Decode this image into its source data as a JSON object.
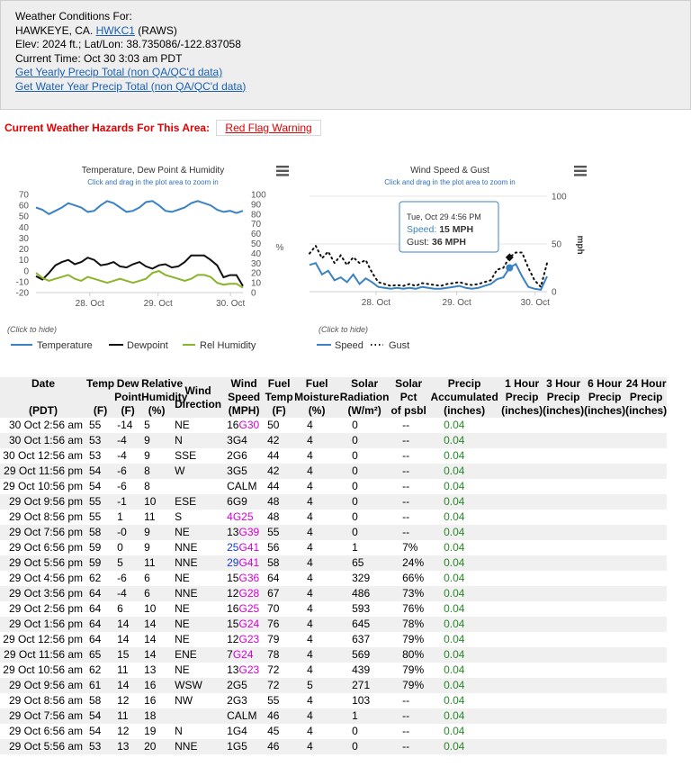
{
  "station": {
    "header": "Weather Conditions For:",
    "name_prefix": "HAWKEYE, CA.",
    "station_id": "HWKC1",
    "network": "(RAWS)",
    "elevation_line": "Elev: 2024 ft.; Lat/Lon: 38.735086/-122.837058",
    "current_time_line": "Current Time: Oct 30 3:03 am PDT",
    "yearly_link": "Get Yearly Precip Total (non QA/QC'd data)",
    "water_year_link": "Get Water Year Precip Total (non QA/QC'd data)"
  },
  "hazards": {
    "label": "Current Weather Hazards For This Area:",
    "warning": "Red Flag Warning",
    "color": "#e30000"
  },
  "temp_chart": {
    "title": "Temperature, Dew Point & Humidity",
    "subtitle": "Click and drag in the plot area to zoom in",
    "left_ticks": [
      "70",
      "60",
      "50",
      "40",
      "30",
      "20",
      "10",
      "0",
      "-10",
      "-20"
    ],
    "right_ticks": [
      "100",
      "90",
      "80",
      "70",
      "60",
      "50",
      "40",
      "30",
      "20",
      "10",
      "0"
    ],
    "right_axis_label": "%",
    "x_ticks": [
      "28. Oct",
      "29. Oct",
      "30. Oct"
    ],
    "click_to_hide": "(Click to hide)",
    "legend": [
      {
        "label": "Temperature",
        "color": "#3b82c4"
      },
      {
        "label": "Dewpoint",
        "color": "#111111"
      },
      {
        "label": "Rel Humidity",
        "color": "#8ab42a"
      }
    ],
    "menu_icon": "hamburger-icon"
  },
  "chart_data": [
    {
      "type": "line",
      "title": "Temperature, Dew Point & Humidity",
      "x_range": [
        "27 Oct 03:00",
        "30 Oct 03:00"
      ],
      "ylim_left": [
        -20,
        70
      ],
      "ylim_right": [
        0,
        100
      ],
      "series": [
        {
          "name": "Temperature",
          "axis": "left",
          "values": [
            58,
            56,
            52,
            55,
            58,
            62,
            60,
            58,
            54,
            55,
            60,
            64,
            62,
            58,
            54,
            55,
            58,
            63,
            64,
            60,
            55,
            54,
            56,
            58,
            62,
            64,
            62,
            60,
            56,
            54,
            55,
            53,
            55
          ]
        },
        {
          "name": "Dewpoint",
          "axis": "left",
          "values": [
            -5,
            -8,
            -2,
            5,
            8,
            10,
            6,
            8,
            12,
            10,
            5,
            6,
            8,
            4,
            3,
            6,
            8,
            4,
            2,
            5,
            6,
            3,
            4,
            8,
            14,
            14,
            14,
            10,
            5,
            -6,
            -4,
            -4,
            -14
          ]
        },
        {
          "name": "Rel Humidity",
          "axis": "right",
          "values": [
            20,
            15,
            12,
            14,
            16,
            18,
            14,
            12,
            16,
            14,
            12,
            10,
            12,
            14,
            12,
            10,
            12,
            14,
            20,
            22,
            18,
            16,
            14,
            12,
            14,
            18,
            18,
            16,
            10,
            8,
            9,
            9,
            5
          ]
        }
      ]
    },
    {
      "type": "line",
      "title": "Wind Speed & Gust",
      "x_range": [
        "27 Oct 03:00",
        "30 Oct 03:00"
      ],
      "ylim": [
        0,
        100
      ],
      "ylabel": "mph",
      "series": [
        {
          "name": "Speed",
          "values": [
            28,
            30,
            18,
            22,
            12,
            15,
            10,
            18,
            8,
            14,
            10,
            5,
            4,
            3,
            4,
            3,
            4,
            3,
            5,
            4,
            3,
            3,
            4,
            5,
            6,
            4,
            3,
            4,
            6,
            8,
            13,
            15,
            25,
            29,
            16,
            5,
            3,
            2,
            16
          ]
        },
        {
          "name": "Gust",
          "values": [
            40,
            48,
            35,
            42,
            30,
            38,
            28,
            36,
            30,
            33,
            20,
            10,
            8,
            6,
            7,
            6,
            8,
            6,
            9,
            8,
            7,
            6,
            8,
            9,
            10,
            8,
            7,
            8,
            10,
            12,
            23,
            25,
            36,
            41,
            41,
            25,
            12,
            5,
            30
          ]
        }
      ]
    }
  ],
  "wind_chart": {
    "title": "Wind Speed & Gust",
    "subtitle": "Click and drag in the plot area to zoom in",
    "right_ticks": [
      "100",
      "50",
      "0"
    ],
    "axis_label": "mph",
    "x_ticks": [
      "28. Oct",
      "29. Oct",
      "30. Oct"
    ],
    "tooltip": {
      "time": "Tue, Oct 29 4:56 PM",
      "speed_label": "Speed:",
      "speed_value": "15 MPH",
      "gust_label": "Gust:",
      "gust_value": "36 MPH"
    },
    "click_to_hide": "(Click to hide)",
    "legend": [
      {
        "label": "Speed",
        "color": "#3b82c4"
      },
      {
        "label": "Gust",
        "color": "#111111"
      }
    ],
    "menu_icon": "hamburger-icon"
  },
  "table": {
    "headers": {
      "date": "Date",
      "date_sub": "(PDT)",
      "temp": "Temp",
      "temp_sub": "(F)",
      "dew": "Dew Point",
      "dew_sub": "(F)",
      "rh": "Relative Humidity",
      "rh_sub": "(%)",
      "wind_dir": "Wind Direction",
      "wind_speed": "Wind Speed",
      "wind_speed_sub": "(MPH)",
      "fuel_temp": "Fuel Temp",
      "fuel_temp_sub": "(F)",
      "fuel_moist": "Fuel Moisture",
      "fuel_moist_sub": "(%)",
      "solar": "Solar Radiation",
      "solar_sub": "(W/m²)",
      "solar_pct": "Solar Pct",
      "solar_pct_sub": "of psbl",
      "precip": "Precip Accumulated",
      "precip_sub": "(inches)",
      "p1": "1 Hour Precip",
      "p3": "3 Hour Precip",
      "p6": "6 Hour Precip",
      "p24": "24 Hour Precip",
      "inches": "(inches)"
    },
    "rows": [
      {
        "date": "30 Oct 2:56 am",
        "temp": "55",
        "dew": "-14",
        "rh": "5",
        "dir": "NE",
        "spd": "16",
        "gust": "G30",
        "ftemp": "50",
        "fmoist": "4",
        "solar": "0",
        "pct": "--",
        "precip": "0.04"
      },
      {
        "date": "30 Oct 1:56 am",
        "temp": "53",
        "dew": "-4",
        "rh": "9",
        "dir": "N",
        "spd": "3",
        "gust": "G4",
        "ftemp": "42",
        "fmoist": "4",
        "solar": "0",
        "pct": "--",
        "precip": "0.04"
      },
      {
        "date": "30 Oct 12:56 am",
        "temp": "53",
        "dew": "-4",
        "rh": "9",
        "dir": "SSE",
        "spd": "2",
        "gust": "G6",
        "ftemp": "44",
        "fmoist": "4",
        "solar": "0",
        "pct": "--",
        "precip": "0.04"
      },
      {
        "date": "29 Oct 11:56 pm",
        "temp": "54",
        "dew": "-6",
        "rh": "8",
        "dir": "W",
        "spd": "3",
        "gust": "G5",
        "ftemp": "42",
        "fmoist": "4",
        "solar": "0",
        "pct": "--",
        "precip": "0.04"
      },
      {
        "date": "29 Oct 10:56 pm",
        "temp": "54",
        "dew": "-6",
        "rh": "8",
        "dir": "",
        "spd": "CALM",
        "gust": "",
        "ftemp": "44",
        "fmoist": "4",
        "solar": "0",
        "pct": "--",
        "precip": "0.04"
      },
      {
        "date": "29 Oct 9:56 pm",
        "temp": "55",
        "dew": "-1",
        "rh": "10",
        "dir": "ESE",
        "spd": "6",
        "gust": "G9",
        "ftemp": "48",
        "fmoist": "4",
        "solar": "0",
        "pct": "--",
        "precip": "0.04"
      },
      {
        "date": "29 Oct 8:56 pm",
        "temp": "55",
        "dew": "1",
        "rh": "11",
        "dir": "S",
        "spd": "4",
        "gust": "G25",
        "ftemp": "48",
        "fmoist": "4",
        "solar": "0",
        "pct": "--",
        "precip": "0.04"
      },
      {
        "date": "29 Oct 7:56 pm",
        "temp": "58",
        "dew": "-0",
        "rh": "9",
        "dir": "NE",
        "spd": "13",
        "gust": "G39",
        "ftemp": "55",
        "fmoist": "4",
        "solar": "0",
        "pct": "--",
        "precip": "0.04"
      },
      {
        "date": "29 Oct 6:56 pm",
        "temp": "59",
        "dew": "0",
        "rh": "9",
        "dir": "NNE",
        "spd": "25",
        "gust": "G41",
        "ftemp": "56",
        "fmoist": "4",
        "solar": "1",
        "pct": "7%",
        "precip": "0.04"
      },
      {
        "date": "29 Oct 5:56 pm",
        "temp": "59",
        "dew": "5",
        "rh": "11",
        "dir": "NNE",
        "spd": "29",
        "gust": "G41",
        "ftemp": "58",
        "fmoist": "4",
        "solar": "65",
        "pct": "24%",
        "precip": "0.04"
      },
      {
        "date": "29 Oct 4:56 pm",
        "temp": "62",
        "dew": "-6",
        "rh": "6",
        "dir": "NE",
        "spd": "15",
        "gust": "G36",
        "ftemp": "64",
        "fmoist": "4",
        "solar": "329",
        "pct": "66%",
        "precip": "0.04"
      },
      {
        "date": "29 Oct 3:56 pm",
        "temp": "64",
        "dew": "-4",
        "rh": "6",
        "dir": "NNE",
        "spd": "12",
        "gust": "G28",
        "ftemp": "67",
        "fmoist": "4",
        "solar": "486",
        "pct": "73%",
        "precip": "0.04"
      },
      {
        "date": "29 Oct 2:56 pm",
        "temp": "64",
        "dew": "6",
        "rh": "10",
        "dir": "NE",
        "spd": "16",
        "gust": "G25",
        "ftemp": "70",
        "fmoist": "4",
        "solar": "593",
        "pct": "76%",
        "precip": "0.04"
      },
      {
        "date": "29 Oct 1:56 pm",
        "temp": "64",
        "dew": "14",
        "rh": "14",
        "dir": "NE",
        "spd": "15",
        "gust": "G24",
        "ftemp": "76",
        "fmoist": "4",
        "solar": "645",
        "pct": "78%",
        "precip": "0.04"
      },
      {
        "date": "29 Oct 12:56 pm",
        "temp": "64",
        "dew": "14",
        "rh": "14",
        "dir": "NE",
        "spd": "12",
        "gust": "G23",
        "ftemp": "79",
        "fmoist": "4",
        "solar": "637",
        "pct": "79%",
        "precip": "0.04"
      },
      {
        "date": "29 Oct 11:56 am",
        "temp": "65",
        "dew": "15",
        "rh": "14",
        "dir": "ENE",
        "spd": "7",
        "gust": "G24",
        "ftemp": "78",
        "fmoist": "4",
        "solar": "569",
        "pct": "80%",
        "precip": "0.04"
      },
      {
        "date": "29 Oct 10:56 am",
        "temp": "62",
        "dew": "11",
        "rh": "13",
        "dir": "NE",
        "spd": "13",
        "gust": "G23",
        "ftemp": "72",
        "fmoist": "4",
        "solar": "439",
        "pct": "79%",
        "precip": "0.04"
      },
      {
        "date": "29 Oct 9:56 am",
        "temp": "61",
        "dew": "14",
        "rh": "16",
        "dir": "WSW",
        "spd": "2",
        "gust": "G5",
        "ftemp": "72",
        "fmoist": "5",
        "solar": "271",
        "pct": "79%",
        "precip": "0.04"
      },
      {
        "date": "29 Oct 8:56 am",
        "temp": "58",
        "dew": "12",
        "rh": "16",
        "dir": "NW",
        "spd": "2",
        "gust": "G3",
        "ftemp": "55",
        "fmoist": "4",
        "solar": "103",
        "pct": "--",
        "precip": "0.04"
      },
      {
        "date": "29 Oct 7:56 am",
        "temp": "54",
        "dew": "11",
        "rh": "18",
        "dir": "",
        "spd": "CALM",
        "gust": "",
        "ftemp": "46",
        "fmoist": "4",
        "solar": "1",
        "pct": "--",
        "precip": "0.04"
      },
      {
        "date": "29 Oct 6:56 am",
        "temp": "54",
        "dew": "12",
        "rh": "19",
        "dir": "N",
        "spd": "1",
        "gust": "G4",
        "ftemp": "45",
        "fmoist": "4",
        "solar": "0",
        "pct": "--",
        "precip": "0.04"
      },
      {
        "date": "29 Oct 5:56 am",
        "temp": "53",
        "dew": "13",
        "rh": "20",
        "dir": "NNE",
        "spd": "1",
        "gust": "G5",
        "ftemp": "46",
        "fmoist": "4",
        "solar": "0",
        "pct": "--",
        "precip": "0.04"
      }
    ]
  },
  "colors": {
    "temperature": "#3b82c4",
    "dewpoint": "#111111",
    "humidity": "#8ab42a",
    "speed": "#3b82c4",
    "gust": "#111111",
    "precip": "#2a8a2a",
    "gust_highlight": "#d400d4",
    "speed_blue": "#1b3bd6",
    "info_bg": "#eeeeee"
  }
}
